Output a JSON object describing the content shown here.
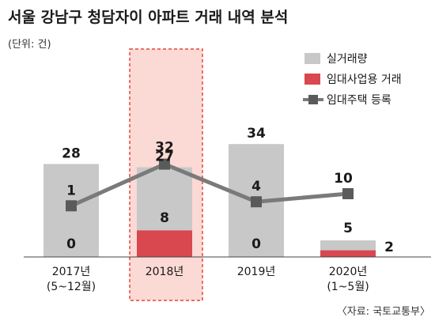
{
  "title": "서울 강남구 청담자이 아파트 거래 내역 분석",
  "unit": "(단위: 건)",
  "source": "〈자료: 국토교통부〉",
  "colors": {
    "total": "#c8c8c8",
    "rental_business": "#d9474f",
    "registered_line": "#7a7a7a",
    "highlight_fill": "#fbd9d4",
    "highlight_border": "#e8463c"
  },
  "highlight_category": "2018년",
  "chart_data": {
    "type": "bar",
    "categories": [
      [
        "2017년",
        "(5~12월)"
      ],
      [
        "2018년"
      ],
      [
        "2019년"
      ],
      [
        "2020년",
        "(1~5월)"
      ]
    ],
    "series": [
      {
        "name": "실거래량",
        "type": "bar",
        "values": [
          28,
          27,
          34,
          5
        ]
      },
      {
        "name": "임대사업용 거래",
        "type": "bar",
        "values": [
          0,
          8,
          0,
          2
        ]
      },
      {
        "name": "임대주택 등록",
        "type": "line",
        "values": [
          1,
          32,
          4,
          10
        ]
      }
    ],
    "legend": [
      "실거래량",
      "임대사업용 거래",
      "임대주택 등록"
    ],
    "legend_position": "top-right",
    "grid": false
  }
}
